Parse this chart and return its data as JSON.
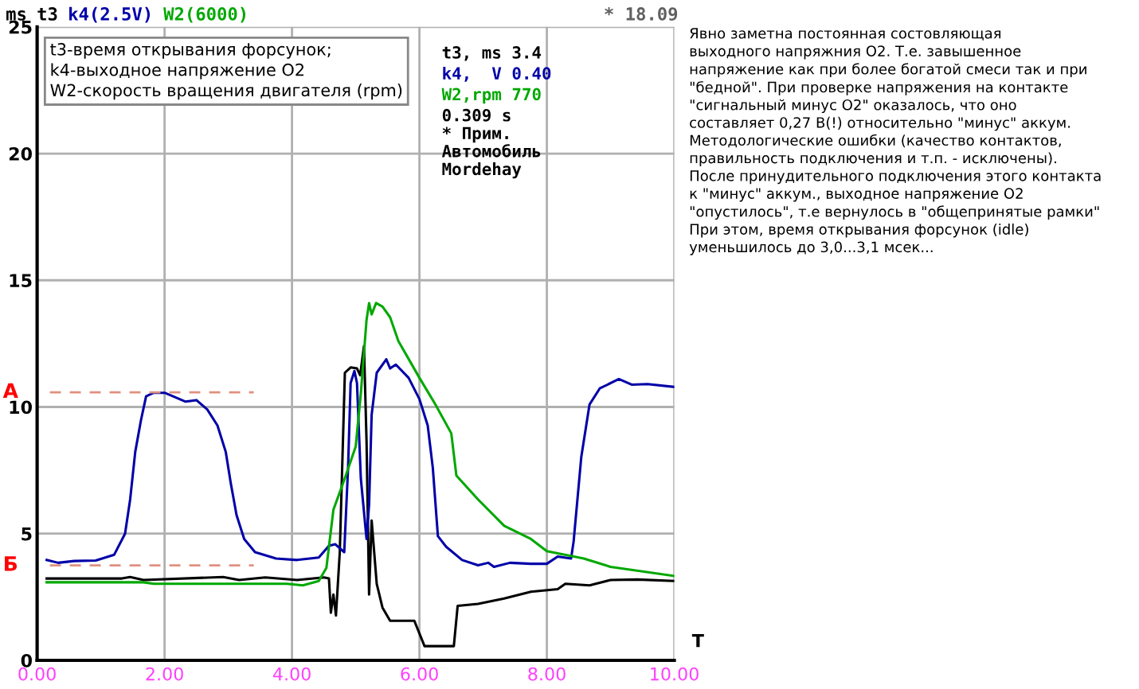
{
  "chart_data": {
    "type": "line",
    "ylabel": "ms",
    "xlabel": "T",
    "xlim": [
      0,
      10
    ],
    "ylim": [
      0,
      25
    ],
    "xticks": [
      {
        "value": 0,
        "label": "0.00"
      },
      {
        "value": 2,
        "label": "2.00"
      },
      {
        "value": 4,
        "label": "4.00"
      },
      {
        "value": 6,
        "label": "6.00"
      },
      {
        "value": 8,
        "label": "8.00"
      },
      {
        "value": 10,
        "label": "10.00"
      }
    ],
    "yticks": [
      0,
      5,
      10,
      15,
      20,
      25
    ],
    "grid": true,
    "legend": "top left",
    "line_style": "solid",
    "series": [
      {
        "name": "t3",
        "color": "#000000",
        "x": [
          0.15,
          1.33,
          1.46,
          1.67,
          2.92,
          3.17,
          3.58,
          4.08,
          4.5,
          4.58,
          4.61,
          4.65,
          4.69,
          4.75,
          4.83,
          4.92,
          5.02,
          5.07,
          5.13,
          5.17,
          5.21,
          5.25,
          5.33,
          5.42,
          5.54,
          5.92,
          6.08,
          6.54,
          6.6,
          6.92,
          7.33,
          7.75,
          8.17,
          8.29,
          8.67,
          9.0,
          9.42,
          10.0
        ],
        "values": [
          3.23,
          3.23,
          3.29,
          3.17,
          3.29,
          3.17,
          3.27,
          3.17,
          3.27,
          3.23,
          1.88,
          2.6,
          1.77,
          4.27,
          11.35,
          11.56,
          11.52,
          11.25,
          12.4,
          8.65,
          2.6,
          5.52,
          3.02,
          2.08,
          1.56,
          1.56,
          0.56,
          0.56,
          2.15,
          2.23,
          2.44,
          2.71,
          2.81,
          3.02,
          2.96,
          3.17,
          3.19,
          3.13
        ]
      },
      {
        "name": "k4(2.5V)",
        "color": "#0000a8",
        "x": [
          0.15,
          0.33,
          0.58,
          0.92,
          1.21,
          1.38,
          1.46,
          1.54,
          1.63,
          1.71,
          1.83,
          2.0,
          2.17,
          2.33,
          2.5,
          2.67,
          2.83,
          2.96,
          3.04,
          3.13,
          3.25,
          3.42,
          3.75,
          4.08,
          4.42,
          4.58,
          4.68,
          4.82,
          4.88,
          4.92,
          4.98,
          5.02,
          5.08,
          5.17,
          5.21,
          5.25,
          5.33,
          5.48,
          5.54,
          5.63,
          5.83,
          6.0,
          6.13,
          6.21,
          6.29,
          6.42,
          6.67,
          6.92,
          7.08,
          7.17,
          7.42,
          7.75,
          8.0,
          8.17,
          8.38,
          8.42,
          8.54,
          8.67,
          8.83,
          9.13,
          9.33,
          9.58,
          10.0
        ],
        "values": [
          3.96,
          3.85,
          3.92,
          3.94,
          4.17,
          5.0,
          6.35,
          8.23,
          9.48,
          10.42,
          10.56,
          10.56,
          10.38,
          10.21,
          10.27,
          9.9,
          9.27,
          8.23,
          6.98,
          5.73,
          4.79,
          4.27,
          4.02,
          3.96,
          4.06,
          4.52,
          4.58,
          4.27,
          7.6,
          10.94,
          11.42,
          10.94,
          7.19,
          4.79,
          6.15,
          9.69,
          11.35,
          11.88,
          11.52,
          11.67,
          11.15,
          10.31,
          9.27,
          7.6,
          4.9,
          4.48,
          3.96,
          3.75,
          3.85,
          3.69,
          3.85,
          3.81,
          3.81,
          4.1,
          4.02,
          4.69,
          8.02,
          10.1,
          10.73,
          11.1,
          10.88,
          10.9,
          10.79
        ]
      },
      {
        "name": "W2(6000)",
        "color": "#00a800",
        "x": [
          0.15,
          1.67,
          1.83,
          3.92,
          4.17,
          4.42,
          4.54,
          4.65,
          4.83,
          5.0,
          5.08,
          5.17,
          5.21,
          5.25,
          5.32,
          5.42,
          5.54,
          5.67,
          6.0,
          6.25,
          6.5,
          6.58,
          6.92,
          7.33,
          7.75,
          8.0,
          8.58,
          9.0,
          10.0
        ],
        "values": [
          3.08,
          3.08,
          3.02,
          3.02,
          2.96,
          3.13,
          3.65,
          5.94,
          7.19,
          8.44,
          10.52,
          13.44,
          14.1,
          13.65,
          14.1,
          13.96,
          13.54,
          12.6,
          11.15,
          10.1,
          8.96,
          7.29,
          6.35,
          5.31,
          4.79,
          4.31,
          4.02,
          3.69,
          3.33
        ]
      }
    ],
    "ref_lines": [
      {
        "axis": "y",
        "value": 10.58,
        "label": "А",
        "color": "#e09080",
        "line_style": "dashed"
      },
      {
        "axis": "y",
        "value": 3.75,
        "label": "Б",
        "color": "#e09080",
        "line_style": "dashed"
      }
    ],
    "annotations": [
      "t3-время открывания форсунок;\nk4-выходное напряжение О2\nW2-скорость вращения двигателя (rpm)",
      "t3, ms 3.4",
      "k4,  V 0.40",
      "W2,rpm 770",
      "0.309 s\n* Прим.\nАвтомобиль\nMordehay",
      "* 18.09",
      "Явно заметна постоянная состовляющая\nвыходного напряжния О2. Т.е. завышенное\nнапряжение как при более богатой смеси так и при\n\"бедной\". При проверке напряжения на контакте\n\"сигнальный минус О2\" оказалось, что оно\nсоставляет 0,27 В(!) относительно \"минус\" аккум.\nМетодологические ошибки (качество контактов,\nправильность подключения и т.п. - исключены).\nПосле принудительного подключения этого контакта\nк \"минус\" аккум., выходное напряжение О2\n\"опустилось\", т.е вернулось в \"общепринятые рамки\"\nПри этом, время открывания форсунок (idle)\nуменьшилось до 3,0...3,1 мсек..."
    ]
  }
}
